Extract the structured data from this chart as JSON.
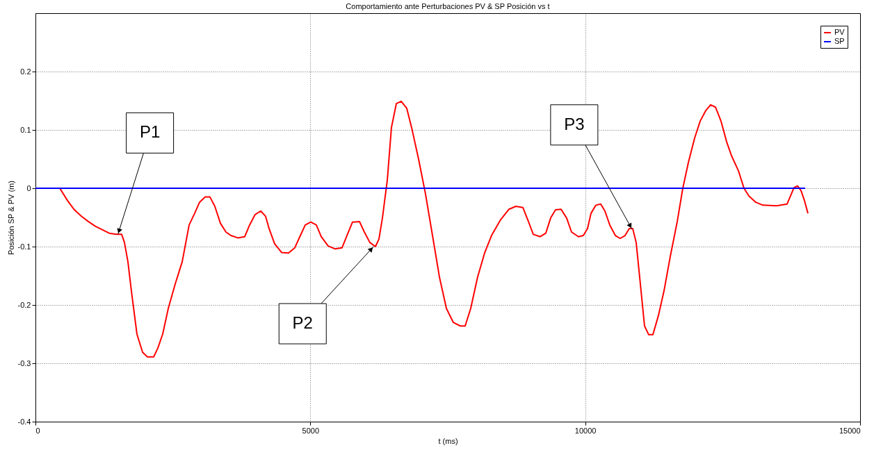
{
  "chart_data": {
    "type": "line",
    "title": "Comportamiento ante Perturbaciones  PV & SP Posición vs t",
    "xlabel": "t (ms)",
    "ylabel": "Posición SP & PV (m)",
    "xlim": [
      0,
      15000
    ],
    "xticks": [
      0,
      5000,
      10000,
      15000
    ],
    "ylim": [
      -0.4,
      0.3
    ],
    "yticks": [
      -0.4,
      -0.3,
      -0.2,
      -0.1,
      0,
      0.1,
      0.2
    ],
    "grid": true,
    "legend": "top right",
    "line_style": "solid",
    "marker": "none",
    "series": [
      {
        "name": "PV",
        "color": "#ff0000",
        "x": [
          0,
          443,
          582,
          708,
          835,
          961,
          1088,
          1214,
          1341,
          1467,
          1568,
          1619,
          1682,
          1745,
          1846,
          1948,
          2036,
          2150,
          2226,
          2314,
          2416,
          2542,
          2669,
          2795,
          2896,
          2985,
          3086,
          3174,
          3263,
          3364,
          3465,
          3554,
          3680,
          3807,
          3895,
          3996,
          4098,
          4186,
          4249,
          4350,
          4477,
          4603,
          4717,
          4819,
          4907,
          5008,
          5109,
          5198,
          5324,
          5451,
          5577,
          5666,
          5767,
          5894,
          5982,
          6083,
          6184,
          6248,
          6311,
          6400,
          6475,
          6564,
          6653,
          6754,
          6842,
          6969,
          7095,
          7222,
          7348,
          7475,
          7601,
          7728,
          7816,
          7917,
          8043,
          8170,
          8296,
          8461,
          8613,
          8739,
          8866,
          8967,
          9055,
          9182,
          9283,
          9371,
          9460,
          9561,
          9662,
          9751,
          9877,
          9966,
          10042,
          10105,
          10194,
          10282,
          10358,
          10447,
          10548,
          10636,
          10725,
          10801,
          10864,
          10927,
          10990,
          11079,
          11155,
          11231,
          11332,
          11433,
          11547,
          11674,
          11775,
          11876,
          11990,
          12091,
          12192,
          12281,
          12369,
          12470,
          12571,
          12660,
          12787,
          12888,
          12976,
          13103,
          13229,
          13482,
          13672,
          13735,
          13798,
          13862,
          13925,
          13988,
          14051
        ],
        "values": [
          0,
          0,
          -0.021,
          -0.037,
          -0.048,
          -0.057,
          -0.065,
          -0.071,
          -0.077,
          -0.079,
          -0.079,
          -0.093,
          -0.126,
          -0.176,
          -0.25,
          -0.281,
          -0.289,
          -0.289,
          -0.274,
          -0.25,
          -0.206,
          -0.164,
          -0.126,
          -0.063,
          -0.043,
          -0.024,
          -0.015,
          -0.015,
          -0.031,
          -0.06,
          -0.075,
          -0.081,
          -0.085,
          -0.083,
          -0.063,
          -0.045,
          -0.039,
          -0.048,
          -0.069,
          -0.095,
          -0.11,
          -0.111,
          -0.102,
          -0.081,
          -0.063,
          -0.058,
          -0.063,
          -0.083,
          -0.099,
          -0.104,
          -0.102,
          -0.081,
          -0.058,
          -0.057,
          -0.075,
          -0.093,
          -0.1,
          -0.087,
          -0.051,
          0.014,
          0.104,
          0.145,
          0.149,
          0.137,
          0.104,
          0.05,
          -0.01,
          -0.081,
          -0.152,
          -0.206,
          -0.23,
          -0.236,
          -0.236,
          -0.206,
          -0.152,
          -0.111,
          -0.081,
          -0.054,
          -0.036,
          -0.031,
          -0.033,
          -0.057,
          -0.079,
          -0.083,
          -0.077,
          -0.051,
          -0.037,
          -0.036,
          -0.051,
          -0.075,
          -0.083,
          -0.081,
          -0.069,
          -0.043,
          -0.029,
          -0.027,
          -0.039,
          -0.063,
          -0.081,
          -0.086,
          -0.081,
          -0.069,
          -0.069,
          -0.093,
          -0.152,
          -0.236,
          -0.251,
          -0.251,
          -0.218,
          -0.176,
          -0.117,
          -0.057,
          0,
          0.044,
          0.086,
          0.115,
          0.133,
          0.143,
          0.139,
          0.115,
          0.08,
          0.056,
          0.03,
          0,
          -0.013,
          -0.024,
          -0.029,
          -0.03,
          -0.027,
          -0.013,
          0.001,
          0.004,
          -0.004,
          -0.021,
          -0.043
        ]
      },
      {
        "name": "SP",
        "color": "#0000ff",
        "x": [
          0,
          14000
        ],
        "values": [
          0,
          0
        ]
      }
    ],
    "annotations": [
      {
        "text": "P1",
        "x": 1500,
        "y": -0.079
      },
      {
        "text": "P2",
        "x": 6150,
        "y": -0.1
      },
      {
        "text": "P3",
        "x": 10850,
        "y": -0.07
      }
    ]
  }
}
